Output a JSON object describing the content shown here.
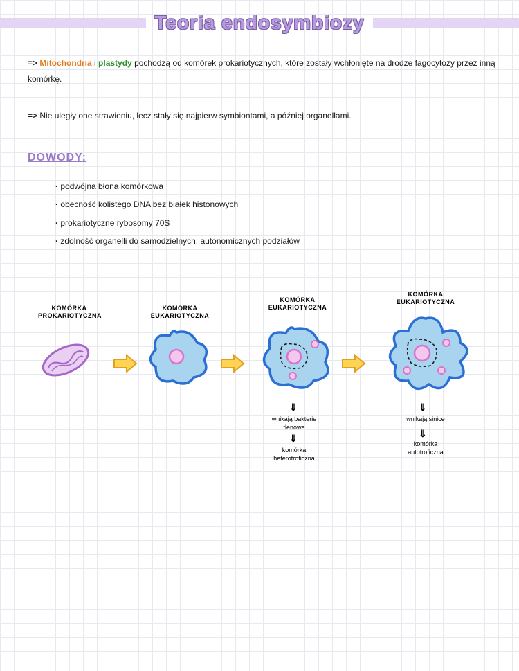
{
  "title": "Teoria endosymbiozy",
  "para1": {
    "prefix": "=>",
    "word1": "Mitochondria",
    "mid1": " i ",
    "word2": "plastydy",
    "rest": " pochodzą od komórek prokariotycznych, które zostały wchłonięte na drodze fagocytozy przez inną komórkę."
  },
  "para2": {
    "prefix": "=>",
    "text": " Nie uległy one strawieniu, lecz stały się najpierw symbiontami, a później organellami."
  },
  "section_header": "DOWODY:",
  "bullets": [
    "podwójna błona komórkowa",
    "obecność kolistego DNA bez białek histonowych",
    "prokariotyczne rybosomy 70S",
    "zdolność organelli do samodzielnych, autonomicznych podziałów"
  ],
  "diagram": {
    "labels": {
      "l1": "KOMÓRKA\nPROKARIOTYCZNA",
      "l2": "KOMÓRKA\nEUKARIOTYCZNA",
      "l3": "KOMÓRKA\nEUKARIOTYCZNA",
      "l4": "KOMÓRKA\nEUKARIOTYCZNA"
    },
    "captions": {
      "c3a": "wnikają bakterie\ntlenowe",
      "c3b": "komórka\nheterotroficzna",
      "c4a": "wnikają sinice",
      "c4b": "komórka\nautotroficzna"
    },
    "down_arrow": "⇓",
    "colors": {
      "cell_stroke": "#2b6fd4",
      "cell_fill": "#a8d4f0",
      "nucleus_stroke": "#d874c9",
      "nucleus_fill": "#f4c8ec",
      "prok_stroke": "#a865c9",
      "prok_fill": "#e9d0f2",
      "arrow_stroke": "#e0a020",
      "arrow_fill": "#ffd454",
      "dash": "#1a1a1a"
    }
  }
}
